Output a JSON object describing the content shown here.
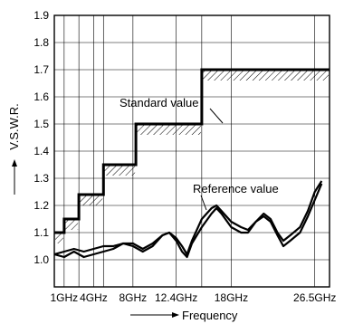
{
  "chart_data": {
    "type": "line",
    "title": "",
    "ylabel": "V.S.W.R.",
    "xlabel": "Frequency",
    "xlim": [
      0,
      28
    ],
    "ylim": [
      0.9,
      1.9
    ],
    "y_ticks": [
      1.0,
      1.1,
      1.2,
      1.3,
      1.4,
      1.5,
      1.6,
      1.7,
      1.8,
      1.9
    ],
    "x_ticks": [
      {
        "value": 1,
        "label": "1GHz"
      },
      {
        "value": 4,
        "label": "4GHz"
      },
      {
        "value": 8,
        "label": "8GHz"
      },
      {
        "value": 12.4,
        "label": "12.4GHz"
      },
      {
        "value": 18,
        "label": "18GHz"
      },
      {
        "value": 26.5,
        "label": "26.5GHz"
      }
    ],
    "grid": true,
    "annotations": {
      "standard": "Standard value",
      "reference": "Reference value"
    },
    "series": [
      {
        "kind": "step",
        "points": [
          [
            0,
            1.1
          ],
          [
            1,
            1.1
          ],
          [
            1,
            1.15
          ],
          [
            2.5,
            1.15
          ],
          [
            2.5,
            1.24
          ],
          [
            5,
            1.24
          ],
          [
            5,
            1.35
          ],
          [
            8.3,
            1.35
          ],
          [
            8.3,
            1.5
          ],
          [
            15,
            1.5
          ],
          [
            15,
            1.7
          ],
          [
            28,
            1.7
          ]
        ]
      },
      {
        "kind": "curve",
        "points": [
          [
            0,
            1.02
          ],
          [
            1,
            1.03
          ],
          [
            2,
            1.04
          ],
          [
            3,
            1.03
          ],
          [
            4,
            1.04
          ],
          [
            5,
            1.05
          ],
          [
            6,
            1.05
          ],
          [
            7,
            1.06
          ],
          [
            8,
            1.06
          ],
          [
            9,
            1.04
          ],
          [
            10,
            1.06
          ],
          [
            11,
            1.09
          ],
          [
            11.7,
            1.1
          ],
          [
            12.4,
            1.08
          ],
          [
            13,
            1.05
          ],
          [
            13.5,
            1.02
          ],
          [
            14,
            1.07
          ],
          [
            15,
            1.15
          ],
          [
            16,
            1.19
          ],
          [
            16.5,
            1.2
          ],
          [
            17,
            1.18
          ],
          [
            18,
            1.14
          ],
          [
            19,
            1.12
          ],
          [
            19.7,
            1.11
          ],
          [
            20.5,
            1.14
          ],
          [
            21.3,
            1.17
          ],
          [
            22,
            1.15
          ],
          [
            22.7,
            1.1
          ],
          [
            23.3,
            1.07
          ],
          [
            24,
            1.09
          ],
          [
            25,
            1.12
          ],
          [
            25.8,
            1.18
          ],
          [
            26.5,
            1.25
          ],
          [
            27.2,
            1.29
          ]
        ]
      },
      {
        "kind": "curve",
        "points": [
          [
            0,
            1.02
          ],
          [
            1,
            1.01
          ],
          [
            2,
            1.03
          ],
          [
            3,
            1.01
          ],
          [
            4,
            1.02
          ],
          [
            5,
            1.03
          ],
          [
            6,
            1.04
          ],
          [
            7,
            1.06
          ],
          [
            8,
            1.05
          ],
          [
            9,
            1.03
          ],
          [
            10,
            1.05
          ],
          [
            11,
            1.09
          ],
          [
            11.7,
            1.1
          ],
          [
            12.4,
            1.07
          ],
          [
            13,
            1.03
          ],
          [
            13.5,
            1.01
          ],
          [
            14,
            1.06
          ],
          [
            15,
            1.12
          ],
          [
            16,
            1.17
          ],
          [
            16.5,
            1.19
          ],
          [
            17,
            1.17
          ],
          [
            18,
            1.12
          ],
          [
            19,
            1.1
          ],
          [
            19.7,
            1.1
          ],
          [
            20.5,
            1.14
          ],
          [
            21.3,
            1.16
          ],
          [
            22,
            1.14
          ],
          [
            22.7,
            1.09
          ],
          [
            23.3,
            1.05
          ],
          [
            24,
            1.07
          ],
          [
            25,
            1.1
          ],
          [
            25.8,
            1.16
          ],
          [
            26.5,
            1.22
          ],
          [
            27.2,
            1.28
          ]
        ]
      }
    ]
  }
}
